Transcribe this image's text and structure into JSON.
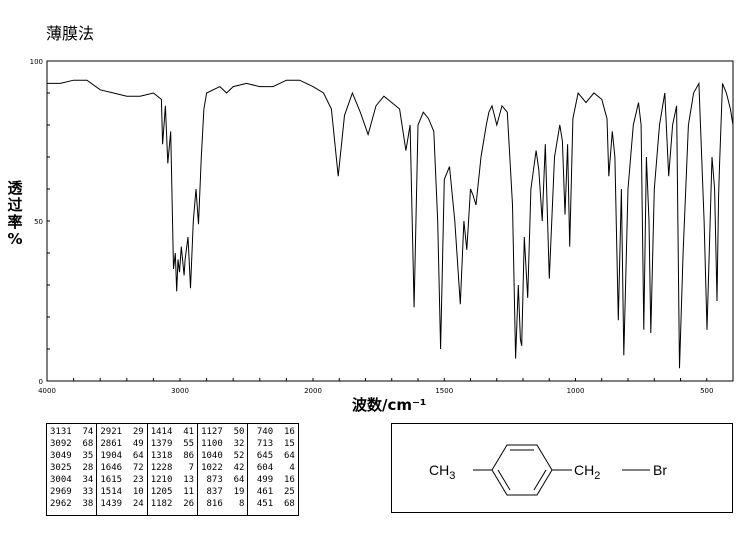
{
  "title": "薄膜法",
  "chart_data": {
    "type": "line",
    "xlabel": "波数/cm⁻¹",
    "ylabel": [
      "透",
      "过",
      "率",
      "%"
    ],
    "xlim": [
      4000,
      400
    ],
    "ylim": [
      0,
      100
    ],
    "x_ticks": [
      "4000",
      "3000",
      "2000",
      "1500",
      "1000",
      "500"
    ],
    "y_ticks": [
      "100",
      "50",
      "0"
    ],
    "series": [
      {
        "x": [
          4000,
          3900,
          3800,
          3700,
          3600,
          3500,
          3400,
          3300,
          3200,
          3140,
          3131,
          3110,
          3092,
          3070,
          3049,
          3035,
          3025,
          3015,
          3004,
          2990,
          2969,
          2962,
          2940,
          2921,
          2900,
          2880,
          2861,
          2840,
          2820,
          2800,
          2700,
          2650,
          2600,
          2500,
          2400,
          2300,
          2200,
          2100,
          2050,
          2000,
          1960,
          1930,
          1904,
          1880,
          1850,
          1820,
          1790,
          1760,
          1730,
          1700,
          1670,
          1646,
          1630,
          1615,
          1600,
          1580,
          1560,
          1540,
          1525,
          1514,
          1500,
          1480,
          1460,
          1439,
          1425,
          1414,
          1400,
          1390,
          1379,
          1360,
          1340,
          1330,
          1318,
          1300,
          1280,
          1260,
          1240,
          1228,
          1218,
          1210,
          1205,
          1195,
          1182,
          1170,
          1150,
          1140,
          1127,
          1115,
          1100,
          1080,
          1060,
          1050,
          1040,
          1030,
          1022,
          1010,
          990,
          960,
          930,
          900,
          880,
          873,
          860,
          850,
          837,
          825,
          816,
          800,
          780,
          760,
          750,
          740,
          730,
          720,
          713,
          700,
          680,
          660,
          645,
          630,
          615,
          604,
          590,
          570,
          550,
          530,
          510,
          499,
          480,
          470,
          461,
          455,
          451,
          440,
          425,
          410,
          400
        ],
        "y": [
          93,
          93,
          94,
          94,
          91,
          90,
          89,
          89,
          90,
          88,
          74,
          86,
          68,
          78,
          35,
          40,
          28,
          38,
          34,
          42,
          33,
          38,
          45,
          29,
          50,
          60,
          49,
          70,
          85,
          90,
          92,
          90,
          92,
          93,
          92,
          92,
          94,
          94,
          93,
          92,
          90,
          85,
          64,
          83,
          90,
          84,
          77,
          86,
          89,
          87,
          85,
          72,
          80,
          23,
          80,
          84,
          82,
          78,
          50,
          10,
          63,
          67,
          50,
          24,
          50,
          41,
          60,
          58,
          55,
          70,
          80,
          84,
          86,
          80,
          86,
          84,
          55,
          7,
          30,
          13,
          11,
          45,
          26,
          60,
          72,
          66,
          50,
          74,
          32,
          70,
          80,
          75,
          52,
          74,
          42,
          82,
          90,
          87,
          90,
          88,
          82,
          64,
          78,
          70,
          19,
          60,
          8,
          60,
          80,
          87,
          80,
          16,
          70,
          50,
          15,
          60,
          80,
          90,
          64,
          80,
          86,
          4,
          40,
          80,
          90,
          93,
          50,
          16,
          70,
          60,
          25,
          58,
          68,
          93,
          90,
          85,
          80
        ]
      }
    ]
  },
  "peak_table": [
    [
      "3131  74",
      "3092  68",
      "3049  35",
      "3025  28",
      "3004  34",
      "2969  33",
      "2962  38"
    ],
    [
      "2921  29",
      "2861  49",
      "1904  64",
      "1646  72",
      "1615  23",
      "1514  10",
      "1439  24"
    ],
    [
      "1414  41",
      "1379  55",
      "1318  86",
      "1228   7",
      "1210  13",
      "1205  11",
      "1182  26"
    ],
    [
      "1127  50",
      "1100  32",
      "1040  52",
      "1022  42",
      " 873  64",
      " 837  19",
      " 816   8"
    ],
    [
      " 740  16",
      " 713  15",
      " 645  64",
      " 604   4",
      " 499  16",
      " 461  25",
      " 451  68"
    ]
  ],
  "structure": {
    "left_group": "CH",
    "left_sub": "3",
    "right_group": "CH",
    "right_sub": "2",
    "bond": "—",
    "halogen": "Br"
  }
}
